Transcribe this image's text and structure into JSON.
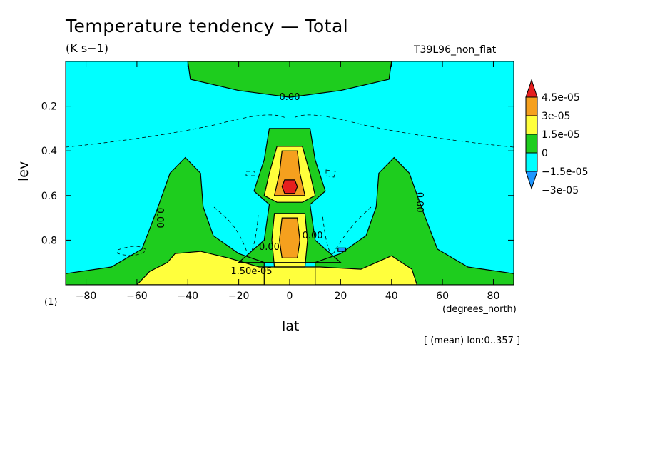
{
  "chart_data": {
    "type": "contour",
    "title": "Temperature tendency — Total",
    "units": "(K s−1)",
    "experiment": "T39L96_non_flat",
    "panel_label": "(1)",
    "xlabel": "lat",
    "x_units": "(degrees_north)",
    "ylabel": "lev",
    "caption": "[ (mean) lon:0..357 ]",
    "xlim": [
      -88,
      88
    ],
    "ylim": [
      0,
      1
    ],
    "y_inverted": true,
    "x_ticks": [
      -80,
      -60,
      -40,
      -20,
      0,
      20,
      40,
      60,
      80
    ],
    "x_tick_labels": [
      "−80",
      "−60",
      "−40",
      "−20",
      "0",
      "20",
      "40",
      "60",
      "80"
    ],
    "y_ticks": [
      0.2,
      0.4,
      0.6,
      0.8
    ],
    "y_tick_labels": [
      "0.2",
      "0.4",
      "0.6",
      "0.8"
    ],
    "colorbar": {
      "labels": [
        "4.5e-05",
        "3e-05",
        "1.5e-05",
        "0",
        "−1.5e-05",
        "−3e-05"
      ],
      "colors": [
        "#e61e1e",
        "#f5a01e",
        "#ffff3c",
        "#1ecd1e",
        "#00ffff",
        "#1e96ff"
      ]
    },
    "contour_labels": [
      {
        "text": "0.00",
        "lat": 0,
        "lev": 0.16
      },
      {
        "text": "0.00",
        "lat": -51,
        "lev": 0.7
      },
      {
        "text": "0.00",
        "lat": 51,
        "lev": 0.63
      },
      {
        "text": "0.00",
        "lat": -8,
        "lev": 0.83
      },
      {
        "text": "0.00",
        "lat": 9,
        "lev": 0.78
      },
      {
        "text": "1.50e-05",
        "lat": -15,
        "lev": 0.94
      }
    ],
    "regions": [
      {
        "level": "0 to 1.5e-05",
        "color": "#1ecd1e",
        "shape": "upper-cap",
        "points": [
          [
            -40,
            0.0
          ],
          [
            40,
            0.0
          ],
          [
            39,
            0.08
          ],
          [
            20,
            0.13
          ],
          [
            0,
            0.16
          ],
          [
            -20,
            0.13
          ],
          [
            -39,
            0.08
          ]
        ]
      },
      {
        "level": "0 to 1.5e-05",
        "color": "#1ecd1e",
        "shape": "central-column",
        "points": [
          [
            -8,
            0.3
          ],
          [
            8,
            0.3
          ],
          [
            10,
            0.44
          ],
          [
            14,
            0.58
          ],
          [
            8,
            0.64
          ],
          [
            10,
            0.8
          ],
          [
            20,
            0.9
          ],
          [
            -20,
            0.9
          ],
          [
            -10,
            0.8
          ],
          [
            -8,
            0.64
          ],
          [
            -14,
            0.58
          ],
          [
            -10,
            0.44
          ]
        ]
      },
      {
        "level": "0 to 1.5e-05",
        "color": "#1ecd1e",
        "shape": "left-lobe",
        "points": [
          [
            -88,
            1.0
          ],
          [
            -88,
            0.95
          ],
          [
            -70,
            0.92
          ],
          [
            -58,
            0.84
          ],
          [
            -52,
            0.66
          ],
          [
            -47,
            0.5
          ],
          [
            -41,
            0.43
          ],
          [
            -35,
            0.5
          ],
          [
            -34,
            0.65
          ],
          [
            -30,
            0.78
          ],
          [
            -20,
            0.86
          ],
          [
            -10,
            0.9
          ],
          [
            -10,
            1.0
          ]
        ]
      },
      {
        "level": "0 to 1.5e-05",
        "color": "#1ecd1e",
        "shape": "right-lobe",
        "points": [
          [
            10,
            1.0
          ],
          [
            10,
            0.9
          ],
          [
            20,
            0.86
          ],
          [
            30,
            0.78
          ],
          [
            34,
            0.65
          ],
          [
            35,
            0.5
          ],
          [
            41,
            0.43
          ],
          [
            47,
            0.5
          ],
          [
            52,
            0.66
          ],
          [
            58,
            0.84
          ],
          [
            70,
            0.92
          ],
          [
            88,
            0.95
          ],
          [
            88,
            1.0
          ]
        ]
      },
      {
        "level": "1.5e-05 to 3e-05",
        "color": "#ffff3c",
        "shape": "upper-core",
        "points": [
          [
            -5,
            0.38
          ],
          [
            5,
            0.38
          ],
          [
            8,
            0.5
          ],
          [
            10,
            0.6
          ],
          [
            5,
            0.63
          ],
          [
            -5,
            0.63
          ],
          [
            -10,
            0.6
          ],
          [
            -8,
            0.5
          ]
        ]
      },
      {
        "level": "1.5e-05 to 3e-05",
        "color": "#ffff3c",
        "shape": "lower-core",
        "points": [
          [
            -6,
            0.68
          ],
          [
            6,
            0.68
          ],
          [
            7,
            0.8
          ],
          [
            6,
            0.92
          ],
          [
            -6,
            0.92
          ],
          [
            -7,
            0.8
          ]
        ]
      },
      {
        "level": "1.5e-05 to 3e-05",
        "color": "#ffff3c",
        "shape": "surface-band",
        "points": [
          [
            -60,
            1.0
          ],
          [
            -55,
            0.94
          ],
          [
            -48,
            0.9
          ],
          [
            -45,
            0.86
          ],
          [
            -35,
            0.85
          ],
          [
            -24,
            0.88
          ],
          [
            -12,
            0.92
          ],
          [
            12,
            0.92
          ],
          [
            28,
            0.93
          ],
          [
            40,
            0.87
          ],
          [
            48,
            0.93
          ],
          [
            50,
            1.0
          ]
        ]
      },
      {
        "level": "3e-05 to 4.5e-05",
        "color": "#f5a01e",
        "shape": "upper-core",
        "points": [
          [
            -3,
            0.4
          ],
          [
            3,
            0.4
          ],
          [
            4,
            0.5
          ],
          [
            6,
            0.6
          ],
          [
            -6,
            0.6
          ],
          [
            -4,
            0.5
          ]
        ]
      },
      {
        "level": "3e-05 to 4.5e-05",
        "color": "#f5a01e",
        "shape": "lower-core",
        "points": [
          [
            -3,
            0.7
          ],
          [
            3,
            0.7
          ],
          [
            4,
            0.8
          ],
          [
            3,
            0.88
          ],
          [
            -3,
            0.88
          ],
          [
            -4,
            0.8
          ]
        ]
      },
      {
        "level": "> 4.5e-05",
        "color": "#e61e1e",
        "shape": "upper-core",
        "points": [
          [
            -2,
            0.53
          ],
          [
            2,
            0.53
          ],
          [
            3,
            0.56
          ],
          [
            2,
            0.59
          ],
          [
            -2,
            0.59
          ],
          [
            -3,
            0.56
          ]
        ]
      },
      {
        "level": "< -1.5e-05",
        "color": "#1e96ff",
        "shape": "small-spot",
        "points": [
          [
            19,
            0.835
          ],
          [
            22,
            0.835
          ],
          [
            22,
            0.85
          ],
          [
            19,
            0.85
          ]
        ]
      }
    ]
  }
}
